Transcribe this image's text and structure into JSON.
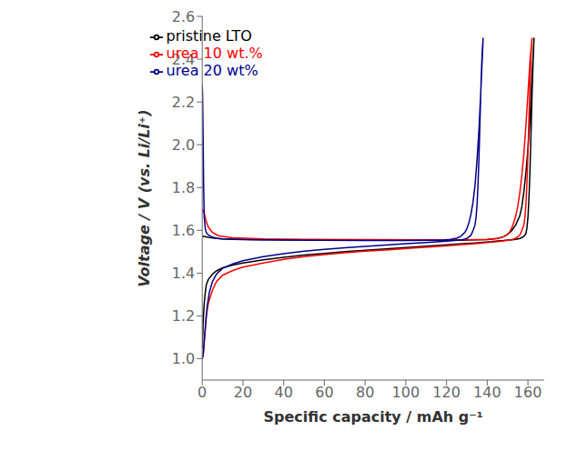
{
  "chart_data": {
    "type": "line",
    "title": "",
    "xlabel": "Specific capacity / mAh g⁻¹",
    "ylabel": "Voltage / V (vs. Li/Li⁺)",
    "xlim": [
      0,
      168
    ],
    "ylim": [
      0.9,
      2.6
    ],
    "xticks": [
      0,
      20,
      40,
      60,
      80,
      100,
      120,
      140,
      160
    ],
    "yticks": [
      {
        "value": 1.0,
        "label": "1.0"
      },
      1.2,
      1.4,
      1.6,
      1.8,
      {
        "value": 2.0,
        "label": "2.0"
      },
      2.2,
      2.4,
      2.6
    ],
    "grid": false,
    "legend": "upper left",
    "series": [
      {
        "name": "pristine LTO",
        "color": "#000000",
        "x": [
          0.0,
          0.5,
          1.5,
          3.0,
          6.0,
          10.0,
          20.0,
          40.0,
          60.0,
          80.0,
          100.0,
          120.0,
          130.0,
          140.0,
          145.0,
          148.0,
          150.0,
          152.0,
          154.0,
          156.0,
          157.0,
          158.0,
          159.0,
          160.0,
          161.0,
          162.0,
          163.0,
          163.0,
          162.5,
          162.0,
          161.5,
          161.0,
          160.5,
          160.0,
          159.5,
          159.0,
          158.0,
          157.0,
          156.0,
          155.0,
          154.0,
          153.0,
          152.0,
          150.0,
          148.0,
          145.0,
          142.0,
          138.0,
          134.0,
          128.0,
          120.0,
          110.0,
          100.0,
          90.0,
          80.0,
          70.0,
          60.0,
          50.0,
          40.0,
          30.0,
          20.0,
          15.0,
          10.0,
          7.0,
          5.0,
          3.0,
          2.0,
          1.5,
          1.0,
          0.5,
          0.0
        ],
        "values": [
          1.57,
          1.572,
          1.57,
          1.567,
          1.563,
          1.56,
          1.558,
          1.556,
          1.555,
          1.554,
          1.553,
          1.553,
          1.554,
          1.557,
          1.562,
          1.57,
          1.58,
          1.598,
          1.625,
          1.668,
          1.71,
          1.78,
          1.87,
          1.98,
          2.12,
          2.32,
          2.5,
          2.5,
          2.38,
          2.23,
          2.05,
          1.88,
          1.75,
          1.66,
          1.61,
          1.585,
          1.572,
          1.566,
          1.562,
          1.56,
          1.558,
          1.557,
          1.556,
          1.554,
          1.552,
          1.55,
          1.547,
          1.544,
          1.541,
          1.537,
          1.532,
          1.526,
          1.519,
          1.513,
          1.507,
          1.5,
          1.492,
          1.484,
          1.474,
          1.462,
          1.447,
          1.438,
          1.425,
          1.41,
          1.395,
          1.37,
          1.345,
          1.31,
          1.26,
          1.18,
          1.05
        ]
      },
      {
        "name": "urea 10 wt.%",
        "color": "#ff0000",
        "x": [
          0.0,
          0.3,
          0.6,
          1.0,
          1.5,
          2.0,
          3.0,
          5.0,
          8.0,
          15.0,
          30.0,
          50.0,
          80.0,
          110.0,
          130.0,
          140.0,
          145.0,
          148.0,
          150.0,
          151.0,
          152.0,
          153.0,
          154.0,
          155.0,
          156.0,
          157.0,
          158.0,
          159.0,
          160.0,
          161.0,
          162.0,
          162.0,
          161.5,
          161.0,
          160.5,
          160.0,
          159.5,
          159.0,
          158.5,
          158.0,
          157.0,
          156.0,
          154.0,
          152.0,
          150.0,
          148.0,
          145.0,
          140.0,
          134.0,
          126.0,
          116.0,
          104.0,
          90.0,
          80.0,
          70.0,
          60.0,
          50.0,
          40.0,
          30.0,
          20.0,
          15.0,
          10.0,
          7.0,
          5.0,
          3.0,
          2.0,
          1.5,
          1.0,
          0.5,
          0.0
        ],
        "values": [
          1.7,
          1.695,
          1.688,
          1.678,
          1.66,
          1.64,
          1.615,
          1.59,
          1.575,
          1.565,
          1.56,
          1.558,
          1.557,
          1.556,
          1.556,
          1.558,
          1.562,
          1.57,
          1.582,
          1.592,
          1.61,
          1.635,
          1.668,
          1.712,
          1.775,
          1.855,
          1.96,
          2.09,
          2.24,
          2.39,
          2.5,
          2.5,
          2.42,
          2.29,
          2.13,
          1.96,
          1.82,
          1.72,
          1.66,
          1.625,
          1.598,
          1.578,
          1.563,
          1.556,
          1.553,
          1.55,
          1.547,
          1.543,
          1.538,
          1.532,
          1.525,
          1.517,
          1.508,
          1.502,
          1.495,
          1.487,
          1.477,
          1.464,
          1.447,
          1.428,
          1.412,
          1.39,
          1.36,
          1.32,
          1.26,
          1.2,
          1.14,
          1.08,
          1.02,
          1.0
        ]
      },
      {
        "name": "urea 20 wt%",
        "color": "#00008B",
        "x": [
          0.0,
          0.15,
          0.3,
          0.5,
          0.7,
          1.0,
          1.5,
          2.0,
          3.0,
          5.0,
          7.0,
          10.0,
          15.0,
          25.0,
          40.0,
          60.0,
          80.0,
          100.0,
          110.0,
          118.0,
          122.0,
          125.0,
          127.0,
          129.0,
          130.0,
          131.0,
          132.0,
          133.0,
          134.0,
          135.0,
          136.0,
          137.0,
          138.0,
          138.0,
          137.5,
          137.0,
          136.5,
          136.0,
          135.5,
          135.0,
          134.5,
          134.0,
          133.0,
          132.0,
          130.0,
          128.0,
          125.0,
          120.0,
          115.0,
          108.0,
          100.0,
          90.0,
          80.0,
          70.0,
          60.0,
          50.0,
          40.0,
          30.0,
          20.0,
          15.0,
          10.0,
          7.0,
          5.0,
          3.5,
          2.5,
          1.8,
          1.2,
          0.8,
          0.4,
          0.0
        ],
        "values": [
          2.28,
          2.24,
          2.14,
          1.98,
          1.8,
          1.66,
          1.608,
          1.59,
          1.578,
          1.568,
          1.563,
          1.56,
          1.558,
          1.556,
          1.554,
          1.553,
          1.552,
          1.552,
          1.553,
          1.555,
          1.558,
          1.563,
          1.572,
          1.59,
          1.608,
          1.635,
          1.675,
          1.73,
          1.81,
          1.93,
          2.08,
          2.28,
          2.5,
          2.5,
          2.43,
          2.3,
          2.13,
          1.96,
          1.82,
          1.72,
          1.66,
          1.625,
          1.598,
          1.577,
          1.562,
          1.557,
          1.553,
          1.549,
          1.546,
          1.542,
          1.537,
          1.531,
          1.525,
          1.518,
          1.511,
          1.502,
          1.491,
          1.477,
          1.458,
          1.443,
          1.422,
          1.395,
          1.36,
          1.31,
          1.25,
          1.18,
          1.11,
          1.055,
          1.015,
          1.0
        ]
      }
    ]
  }
}
